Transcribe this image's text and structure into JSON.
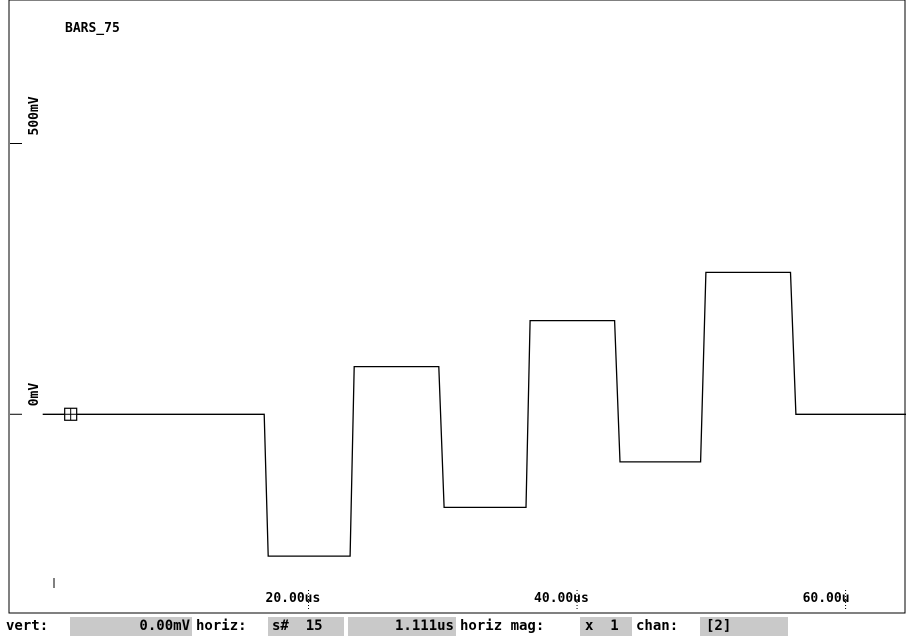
{
  "chart_data": {
    "type": "line",
    "title": "BARS_75",
    "x_unit": "us",
    "xlim": [
      0,
      64.5
    ],
    "ylim": [
      -415,
      765
    ],
    "x_ticks": [
      {
        "value": 20,
        "label": "20.00us"
      },
      {
        "value": 40,
        "label": "40.00us"
      },
      {
        "value": 60,
        "label": "60.00u"
      }
    ],
    "y_ticks": [
      {
        "value": 500,
        "label": "500mV"
      },
      {
        "value": 0,
        "label": "0mV"
      }
    ],
    "series": [
      {
        "x": [
          0.2,
          16.7,
          17.0,
          23.1,
          23.4,
          29.7,
          30.1,
          36.2,
          36.5,
          42.8,
          43.2,
          49.2,
          49.6,
          55.9,
          56.3,
          64.5
        ],
        "y": [
          0,
          0,
          -262,
          -262,
          88,
          88,
          -172,
          -172,
          173,
          173,
          -88,
          -88,
          262,
          262,
          0,
          0
        ]
      }
    ],
    "trigger_marker": {
      "x": 0.2,
      "y": 0
    },
    "grid": false
  },
  "status": {
    "vert_label": "vert:",
    "vert_value": "0.00mV",
    "horiz_label": "horiz:",
    "horiz_sample": "s#  15",
    "horiz_time": "1.111us",
    "mag_label": "horiz mag:",
    "mag_value": "x  1",
    "chan_label": "chan:",
    "chan_value": "[2]"
  }
}
